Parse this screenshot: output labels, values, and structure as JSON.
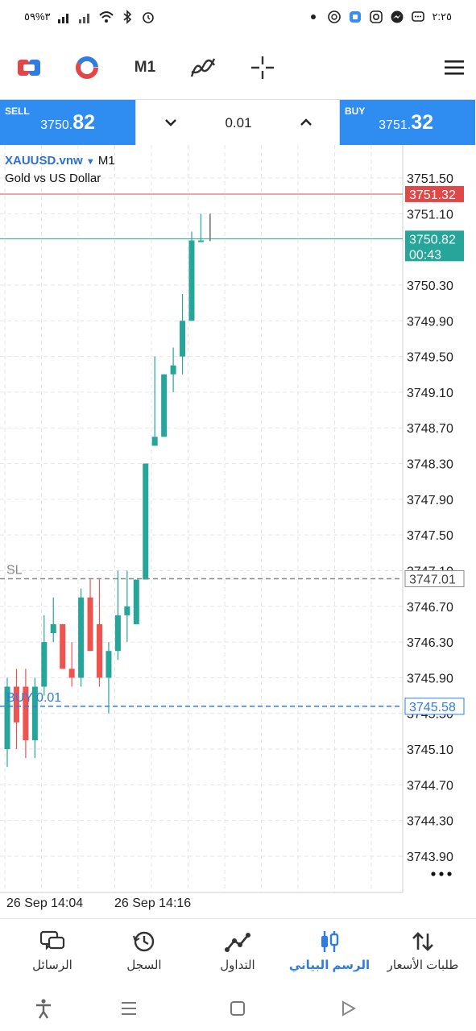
{
  "status_bar": {
    "left_text": "٣%٥٩",
    "time": "٢:٢٥"
  },
  "toolbar": {
    "timeframe": "M1",
    "icons": [
      "one-click-trading-icon",
      "chart-type-icon",
      "timeframe-label",
      "indicators-icon",
      "crosshair-icon",
      "menu-icon"
    ]
  },
  "trade": {
    "sell_label": "SELL",
    "sell_price_small": "3750.",
    "sell_price_big": "82",
    "buy_label": "BUY",
    "buy_price_small": "3751.",
    "buy_price_big": "32",
    "lot": "0.01"
  },
  "chart": {
    "symbol": "XAUUSD.vnw",
    "timeframe": "M1",
    "description": "Gold vs US Dollar",
    "ask_label": "3751.32",
    "bid_label": "3750.82",
    "countdown": "00:43",
    "sl_label": "SL",
    "sl_price": "3747.01",
    "order_label": "BUY 0.01",
    "order_price": "3745.58",
    "price_ticks": [
      "3751.50",
      "3751.10",
      "3750.30",
      "3749.90",
      "3749.50",
      "3749.10",
      "3748.70",
      "3748.30",
      "3747.90",
      "3747.50",
      "3747.10",
      "3746.70",
      "3746.30",
      "3745.90",
      "3745.50",
      "3745.10",
      "3744.70",
      "3744.30",
      "3743.90"
    ],
    "time_labels": [
      "26 Sep 14:04",
      "26 Sep 14:16"
    ],
    "colors": {
      "bull": "#26a69a",
      "bear": "#ef5350",
      "ask_line": "#e04848",
      "bid_line": "#26a69a",
      "order_line": "#2f7de1"
    }
  },
  "chart_data": {
    "type": "candlestick",
    "title": "XAUUSD.vnw M1",
    "xlabel": "",
    "ylabel": "",
    "ylim": [
      3743.7,
      3751.8
    ],
    "candles": [
      {
        "o": 3745.1,
        "h": 3745.9,
        "l": 3744.9,
        "c": 3745.8
      },
      {
        "o": 3745.8,
        "h": 3746.0,
        "l": 3745.1,
        "c": 3745.4
      },
      {
        "o": 3745.8,
        "h": 3746.0,
        "l": 3745.0,
        "c": 3745.2
      },
      {
        "o": 3745.2,
        "h": 3745.9,
        "l": 3745.0,
        "c": 3745.8
      },
      {
        "o": 3745.8,
        "h": 3746.6,
        "l": 3745.7,
        "c": 3746.3
      },
      {
        "o": 3746.4,
        "h": 3746.8,
        "l": 3746.3,
        "c": 3746.5
      },
      {
        "o": 3746.5,
        "h": 3746.5,
        "l": 3746.0,
        "c": 3746.0
      },
      {
        "o": 3746.0,
        "h": 3746.3,
        "l": 3745.8,
        "c": 3745.9
      },
      {
        "o": 3745.9,
        "h": 3746.9,
        "l": 3745.8,
        "c": 3746.8
      },
      {
        "o": 3746.8,
        "h": 3747.0,
        "l": 3746.2,
        "c": 3746.2
      },
      {
        "o": 3746.5,
        "h": 3747.0,
        "l": 3745.8,
        "c": 3745.9
      },
      {
        "o": 3745.9,
        "h": 3746.3,
        "l": 3745.5,
        "c": 3746.2
      },
      {
        "o": 3746.2,
        "h": 3747.1,
        "l": 3746.1,
        "c": 3746.6
      },
      {
        "o": 3746.6,
        "h": 3747.1,
        "l": 3746.3,
        "c": 3746.7
      },
      {
        "o": 3746.5,
        "h": 3747.0,
        "l": 3746.5,
        "c": 3747.0
      },
      {
        "o": 3747.0,
        "h": 3748.3,
        "l": 3747.0,
        "c": 3748.3
      },
      {
        "o": 3748.5,
        "h": 3749.5,
        "l": 3748.5,
        "c": 3748.6
      },
      {
        "o": 3748.6,
        "h": 3749.3,
        "l": 3748.6,
        "c": 3749.3
      },
      {
        "o": 3749.3,
        "h": 3749.6,
        "l": 3749.1,
        "c": 3749.4
      },
      {
        "o": 3749.5,
        "h": 3750.2,
        "l": 3749.3,
        "c": 3749.9
      },
      {
        "o": 3749.9,
        "h": 3750.9,
        "l": 3749.9,
        "c": 3750.8
      },
      {
        "o": 3750.8,
        "h": 3751.1,
        "l": 3750.8,
        "c": 3750.8
      }
    ]
  },
  "bottom_nav": {
    "items": [
      {
        "label": "الرسائل",
        "icon": "messages-icon"
      },
      {
        "label": "السجل",
        "icon": "history-icon"
      },
      {
        "label": "التداول",
        "icon": "trade-icon"
      },
      {
        "label": "الرسم البياني",
        "icon": "chart-icon"
      },
      {
        "label": "طلبات الأسعار",
        "icon": "quotes-icon"
      }
    ]
  }
}
